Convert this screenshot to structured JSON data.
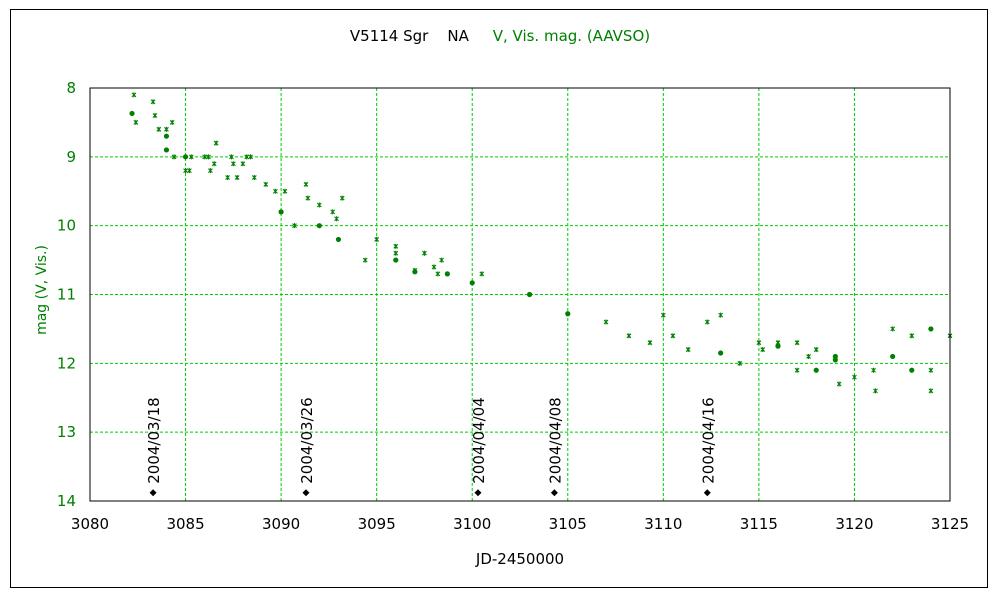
{
  "chart_data": {
    "type": "scatter",
    "title_parts": {
      "star": "V5114 Sgr",
      "type": "NA",
      "band": "V, Vis. mag. (AAVSO)"
    },
    "xlabel": "JD-2450000",
    "ylabel": "mag (V, Vis.)",
    "xlim": [
      3080,
      3125
    ],
    "ylim": [
      8,
      14
    ],
    "y_inverted": true,
    "grid": true,
    "x_ticks": [
      3080,
      3085,
      3090,
      3095,
      3100,
      3105,
      3110,
      3115,
      3120,
      3125
    ],
    "y_ticks": [
      8,
      9,
      10,
      11,
      12,
      13,
      14
    ],
    "colors": {
      "data": "#008000",
      "grid": "#00cc00",
      "axis": "#000000",
      "marker": "#000000"
    },
    "series": [
      {
        "marker": "dot",
        "points": [
          [
            3082.2,
            8.37
          ],
          [
            3084.0,
            8.7
          ],
          [
            3084.0,
            8.9
          ],
          [
            3085.0,
            9.0
          ],
          [
            3090.0,
            9.8
          ],
          [
            3092.0,
            10.0
          ],
          [
            3093.0,
            10.2
          ],
          [
            3096.0,
            10.5
          ],
          [
            3097.0,
            10.67
          ],
          [
            3098.7,
            10.7
          ],
          [
            3100.0,
            10.83
          ],
          [
            3103.0,
            11.0
          ],
          [
            3105.0,
            11.28
          ],
          [
            3113.0,
            11.85
          ],
          [
            3116.0,
            11.75
          ],
          [
            3118.0,
            12.1
          ],
          [
            3119.0,
            11.9
          ],
          [
            3119.0,
            11.95
          ],
          [
            3122.0,
            11.9
          ],
          [
            3123.0,
            12.1
          ],
          [
            3124.0,
            11.5
          ]
        ]
      },
      {
        "marker": "cross",
        "points": [
          [
            3082.3,
            8.1
          ],
          [
            3082.4,
            8.5
          ],
          [
            3083.3,
            8.2
          ],
          [
            3083.4,
            8.4
          ],
          [
            3083.6,
            8.6
          ],
          [
            3084.0,
            8.6
          ],
          [
            3084.3,
            8.5
          ],
          [
            3084.4,
            9.0
          ],
          [
            3085.0,
            9.2
          ],
          [
            3085.2,
            9.2
          ],
          [
            3085.3,
            9.0
          ],
          [
            3086.0,
            9.0
          ],
          [
            3086.2,
            9.0
          ],
          [
            3086.3,
            9.2
          ],
          [
            3086.5,
            9.1
          ],
          [
            3086.6,
            8.8
          ],
          [
            3087.2,
            9.3
          ],
          [
            3087.4,
            9.0
          ],
          [
            3087.5,
            9.1
          ],
          [
            3087.7,
            9.3
          ],
          [
            3088.0,
            9.1
          ],
          [
            3088.2,
            9.0
          ],
          [
            3088.4,
            9.0
          ],
          [
            3088.6,
            9.3
          ],
          [
            3089.2,
            9.4
          ],
          [
            3089.7,
            9.5
          ],
          [
            3090.2,
            9.5
          ],
          [
            3090.7,
            10.0
          ],
          [
            3091.3,
            9.4
          ],
          [
            3091.4,
            9.6
          ],
          [
            3092.0,
            9.7
          ],
          [
            3092.7,
            9.8
          ],
          [
            3092.9,
            9.9
          ],
          [
            3093.2,
            9.6
          ],
          [
            3094.4,
            10.5
          ],
          [
            3095.0,
            10.2
          ],
          [
            3096.0,
            10.3
          ],
          [
            3096.0,
            10.4
          ],
          [
            3097.0,
            10.65
          ],
          [
            3097.5,
            10.4
          ],
          [
            3098.0,
            10.6
          ],
          [
            3098.2,
            10.7
          ],
          [
            3098.4,
            10.5
          ],
          [
            3100.5,
            10.7
          ],
          [
            3107.0,
            11.4
          ],
          [
            3108.2,
            11.6
          ],
          [
            3109.3,
            11.7
          ],
          [
            3110.0,
            11.3
          ],
          [
            3110.5,
            11.6
          ],
          [
            3111.3,
            11.8
          ],
          [
            3112.3,
            11.4
          ],
          [
            3113.0,
            11.3
          ],
          [
            3114.0,
            12.0
          ],
          [
            3115.0,
            11.7
          ],
          [
            3115.2,
            11.8
          ],
          [
            3116.0,
            11.7
          ],
          [
            3117.0,
            11.7
          ],
          [
            3117.0,
            12.1
          ],
          [
            3117.6,
            11.9
          ],
          [
            3118.0,
            11.8
          ],
          [
            3119.2,
            12.3
          ],
          [
            3120.0,
            12.2
          ],
          [
            3121.0,
            12.1
          ],
          [
            3121.1,
            12.4
          ],
          [
            3122.0,
            11.5
          ],
          [
            3123.0,
            11.6
          ],
          [
            3124.0,
            12.1
          ],
          [
            3124.0,
            12.4
          ],
          [
            3125.0,
            11.6
          ]
        ]
      }
    ],
    "date_markers": [
      {
        "x": 3083.3,
        "y": 13.88,
        "label": "2004/03/18"
      },
      {
        "x": 3091.3,
        "y": 13.88,
        "label": "2004/03/26"
      },
      {
        "x": 3100.3,
        "y": 13.88,
        "label": "2004/04/04"
      },
      {
        "x": 3104.3,
        "y": 13.88,
        "label": "2004/04/08"
      },
      {
        "x": 3112.3,
        "y": 13.88,
        "label": "2004/04/16"
      }
    ]
  }
}
